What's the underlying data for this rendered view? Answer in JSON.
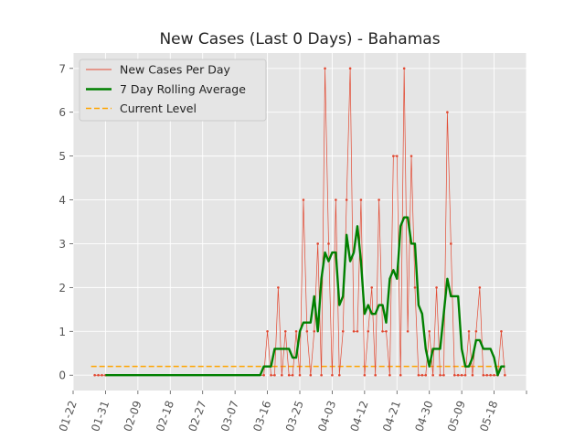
{
  "chart_data": {
    "type": "line",
    "title": "New Cases (Last 0 Days) - Bahamas",
    "xlabel": "",
    "ylabel": "",
    "x_start": "01-28",
    "x_end": "05-21",
    "x_ticks": [
      "01-22",
      "01-31",
      "02-09",
      "02-18",
      "02-27",
      "03-07",
      "03-16",
      "03-25",
      "04-03",
      "04-12",
      "04-21",
      "04-30",
      "05-09",
      "05-18"
    ],
    "x_range": [
      "01-22",
      "05-27"
    ],
    "y_ticks": [
      0,
      1,
      2,
      3,
      4,
      5,
      6,
      7
    ],
    "ylim": [
      -0.35,
      7.35
    ],
    "grid": true,
    "legend_position": "top-left",
    "colors": {
      "daily": "#E24A33",
      "rolling": "#008000",
      "current": "#FFA500",
      "background": "#E5E5E5",
      "grid": "#FFFFFF"
    },
    "series": [
      {
        "name": "New Cases Per Day",
        "style": "thin line with dot markers",
        "points": [
          [
            "01-28",
            0
          ],
          [
            "01-29",
            0
          ],
          [
            "01-30",
            0
          ],
          [
            "01-31",
            0
          ],
          [
            "03-15",
            0
          ],
          [
            "03-16",
            1
          ],
          [
            "03-17",
            0
          ],
          [
            "03-18",
            0
          ],
          [
            "03-19",
            2
          ],
          [
            "03-20",
            0
          ],
          [
            "03-21",
            1
          ],
          [
            "03-22",
            0
          ],
          [
            "03-23",
            0
          ],
          [
            "03-24",
            1
          ],
          [
            "03-25",
            0
          ],
          [
            "03-26",
            4
          ],
          [
            "03-27",
            1
          ],
          [
            "03-28",
            0
          ],
          [
            "03-29",
            1
          ],
          [
            "03-30",
            3
          ],
          [
            "03-31",
            0
          ],
          [
            "04-01",
            7
          ],
          [
            "04-02",
            3
          ],
          [
            "04-03",
            0
          ],
          [
            "04-04",
            4
          ],
          [
            "04-05",
            0
          ],
          [
            "04-06",
            1
          ],
          [
            "04-07",
            4
          ],
          [
            "04-08",
            7
          ],
          [
            "04-09",
            1
          ],
          [
            "04-10",
            1
          ],
          [
            "04-11",
            4
          ],
          [
            "04-12",
            0
          ],
          [
            "04-13",
            1
          ],
          [
            "04-14",
            2
          ],
          [
            "04-15",
            0
          ],
          [
            "04-16",
            4
          ],
          [
            "04-17",
            1
          ],
          [
            "04-18",
            1
          ],
          [
            "04-19",
            0
          ],
          [
            "04-20",
            5
          ],
          [
            "04-21",
            5
          ],
          [
            "04-22",
            0
          ],
          [
            "04-23",
            7
          ],
          [
            "04-24",
            1
          ],
          [
            "04-25",
            5
          ],
          [
            "04-26",
            2
          ],
          [
            "04-27",
            0
          ],
          [
            "04-28",
            0
          ],
          [
            "04-29",
            0
          ],
          [
            "04-30",
            1
          ],
          [
            "05-01",
            0
          ],
          [
            "05-02",
            2
          ],
          [
            "05-03",
            0
          ],
          [
            "05-04",
            0
          ],
          [
            "05-05",
            6
          ],
          [
            "05-06",
            3
          ],
          [
            "05-07",
            0
          ],
          [
            "05-08",
            0
          ],
          [
            "05-09",
            0
          ],
          [
            "05-10",
            0
          ],
          [
            "05-11",
            1
          ],
          [
            "05-12",
            0
          ],
          [
            "05-13",
            1
          ],
          [
            "05-14",
            2
          ],
          [
            "05-15",
            0
          ],
          [
            "05-16",
            0
          ],
          [
            "05-17",
            0
          ],
          [
            "05-18",
            0
          ],
          [
            "05-19",
            0
          ],
          [
            "05-20",
            1
          ],
          [
            "05-21",
            0
          ]
        ]
      },
      {
        "name": "7 Day Rolling Average",
        "style": "thick line",
        "points": [
          [
            "01-31",
            0
          ],
          [
            "03-14",
            0
          ],
          [
            "03-15",
            0.2
          ],
          [
            "03-16",
            0.2
          ],
          [
            "03-17",
            0.2
          ],
          [
            "03-18",
            0.6
          ],
          [
            "03-19",
            0.6
          ],
          [
            "03-20",
            0.6
          ],
          [
            "03-21",
            0.6
          ],
          [
            "03-22",
            0.6
          ],
          [
            "03-23",
            0.4
          ],
          [
            "03-24",
            0.4
          ],
          [
            "03-25",
            1.0
          ],
          [
            "03-26",
            1.2
          ],
          [
            "03-27",
            1.2
          ],
          [
            "03-28",
            1.2
          ],
          [
            "03-29",
            1.8
          ],
          [
            "03-30",
            1.0
          ],
          [
            "03-31",
            2.2
          ],
          [
            "04-01",
            2.8
          ],
          [
            "04-02",
            2.6
          ],
          [
            "04-03",
            2.8
          ],
          [
            "04-04",
            2.8
          ],
          [
            "04-05",
            1.6
          ],
          [
            "04-06",
            1.8
          ],
          [
            "04-07",
            3.2
          ],
          [
            "04-08",
            2.6
          ],
          [
            "04-09",
            2.8
          ],
          [
            "04-10",
            3.4
          ],
          [
            "04-11",
            2.6
          ],
          [
            "04-12",
            1.4
          ],
          [
            "04-13",
            1.6
          ],
          [
            "04-14",
            1.4
          ],
          [
            "04-15",
            1.4
          ],
          [
            "04-16",
            1.6
          ],
          [
            "04-17",
            1.6
          ],
          [
            "04-18",
            1.2
          ],
          [
            "04-19",
            2.2
          ],
          [
            "04-20",
            2.4
          ],
          [
            "04-21",
            2.2
          ],
          [
            "04-22",
            3.4
          ],
          [
            "04-23",
            3.6
          ],
          [
            "04-24",
            3.6
          ],
          [
            "04-25",
            3.0
          ],
          [
            "04-26",
            3.0
          ],
          [
            "04-27",
            1.6
          ],
          [
            "04-28",
            1.4
          ],
          [
            "04-29",
            0.6
          ],
          [
            "04-30",
            0.2
          ],
          [
            "05-01",
            0.6
          ],
          [
            "05-02",
            0.6
          ],
          [
            "05-03",
            0.6
          ],
          [
            "05-04",
            1.4
          ],
          [
            "05-05",
            2.2
          ],
          [
            "05-06",
            1.8
          ],
          [
            "05-07",
            1.8
          ],
          [
            "05-08",
            1.8
          ],
          [
            "05-09",
            0.6
          ],
          [
            "05-10",
            0.2
          ],
          [
            "05-11",
            0.2
          ],
          [
            "05-12",
            0.4
          ],
          [
            "05-13",
            0.8
          ],
          [
            "05-14",
            0.8
          ],
          [
            "05-15",
            0.6
          ],
          [
            "05-16",
            0.6
          ],
          [
            "05-17",
            0.6
          ],
          [
            "05-18",
            0.4
          ],
          [
            "05-19",
            0
          ],
          [
            "05-20",
            0.2
          ],
          [
            "05-21",
            0.2
          ]
        ]
      },
      {
        "name": "Current Level",
        "style": "dashed line",
        "points": [
          [
            "01-27",
            0.2
          ],
          [
            "05-21",
            0.2
          ]
        ]
      }
    ]
  }
}
